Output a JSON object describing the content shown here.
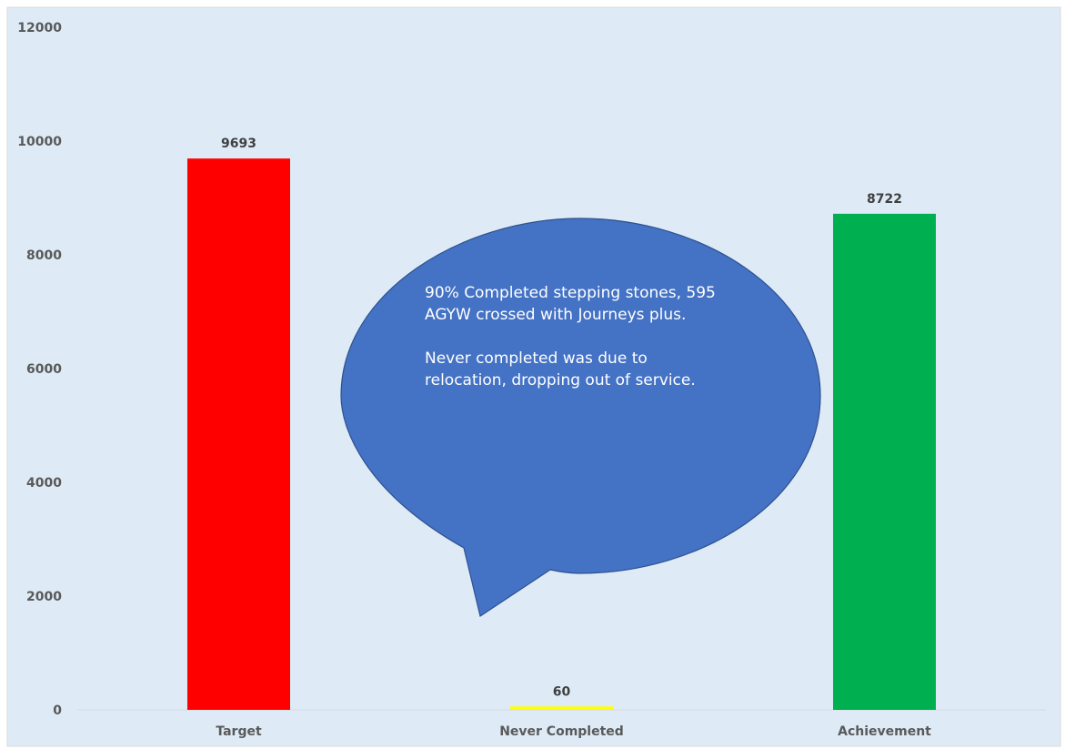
{
  "chart_data": {
    "type": "bar",
    "categories": [
      "Target",
      "Never Completed",
      "Achievement"
    ],
    "values": [
      9693,
      60,
      8722
    ],
    "data_labels": [
      "9693",
      "60",
      "8722"
    ],
    "bar_colors": [
      "#FF0000",
      "#FFFF00",
      "#00B050"
    ],
    "ylim": [
      0,
      12000
    ],
    "yticks": [
      0,
      2000,
      4000,
      6000,
      8000,
      10000,
      12000
    ],
    "ytick_labels": [
      "0",
      "2000",
      "4000",
      "6000",
      "8000",
      "10000",
      "12000"
    ],
    "grid": false,
    "legend": "none",
    "plot_background": "#DEEBF7",
    "annotation": {
      "lines": [
        "90% Completed stepping stones, 595",
        "AGYW crossed with Journeys plus.",
        "",
        "Never completed was due to",
        "relocation, dropping out of service."
      ],
      "fill": "#4472C4",
      "stroke": "#2F528F"
    }
  }
}
